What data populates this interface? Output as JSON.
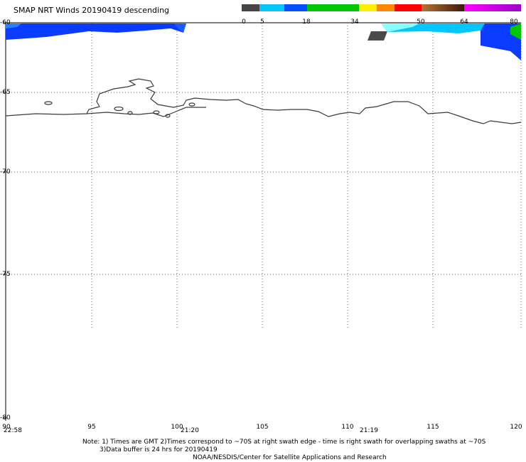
{
  "title": "SMAP NRT Winds  20190419 descending",
  "colorbar": {
    "labels": [
      "0",
      "5",
      "18",
      "34",
      "50",
      "64",
      "80"
    ],
    "colors": [
      "#454545",
      "#00c8ff",
      "#0050ff",
      "#00c800",
      "#ffee00",
      "#ff8800",
      "#ff0000",
      "#8b4513",
      "#ff00ff",
      "#a000c8"
    ]
  },
  "axes": {
    "lat_labels": [
      "-60",
      "-65",
      "-70",
      "-75",
      "-80"
    ],
    "lon_labels": [
      "90",
      "95",
      "100",
      "105",
      "110",
      "115",
      "120"
    ]
  },
  "times": [
    "22:58",
    "21:20",
    "21:19"
  ],
  "notes": {
    "line1": "Note: 1) Times are GMT 2)Times correspond to ~70S at right swath edge - time is right swath for overlapping swaths at ~70S",
    "line2": "3)Data buffer is 24 hrs for 20190419",
    "line3": "NOAA/NESDIS/Center for Satellite Applications and Research"
  }
}
